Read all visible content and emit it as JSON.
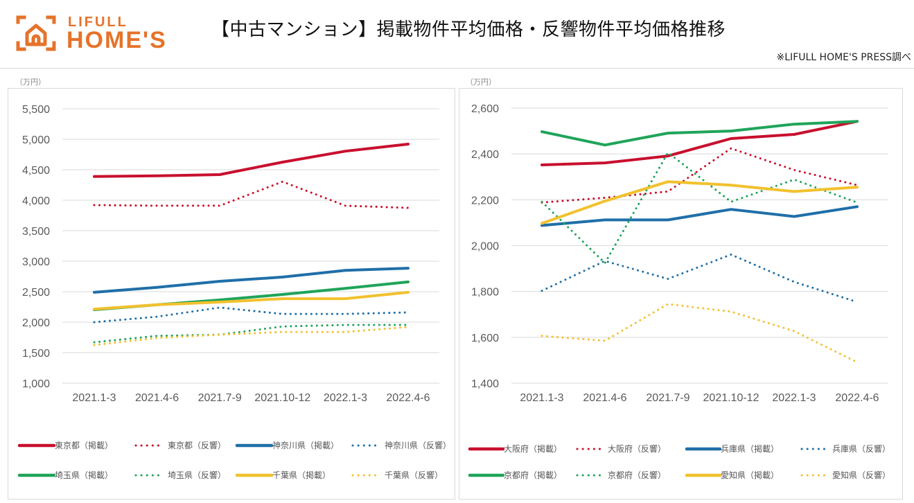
{
  "header": {
    "logo": {
      "line1": "LIFULL",
      "line2": "HOME'S",
      "icon": "house-frame-icon",
      "color": "#E5732A"
    },
    "title": "【中古マンション】掲載物件平均価格・反響物件平均価格推移",
    "source": "※LIFULL HOME'S PRESS調べ"
  },
  "colors": {
    "red": "#C8102E",
    "blue": "#1F6FA8",
    "green": "#1FA45A",
    "yellow": "#F2C12E",
    "grid": "#d9d9d9",
    "axis_text": "#595959"
  },
  "chart_data": [
    {
      "type": "line",
      "title": "",
      "unit_label": "（万円）",
      "xlabel": "",
      "ylabel": "（万円）",
      "categories": [
        "2021.1-3",
        "2021.4-6",
        "2021.7-9",
        "2021.10-12",
        "2022.1-3",
        "2022.4-6"
      ],
      "ylim": [
        1000,
        5500
      ],
      "yticks": [
        1000,
        1500,
        2000,
        2500,
        3000,
        3500,
        4000,
        4500,
        5000,
        5500
      ],
      "ytick_labels": [
        "1,000",
        "1,500",
        "2,000",
        "2,500",
        "3,000",
        "3,500",
        "4,000",
        "4,500",
        "5,000",
        "5,500"
      ],
      "grid": true,
      "legend_position": "bottom",
      "series": [
        {
          "name": "東京都（掲載）",
          "color": "red",
          "style": "solid",
          "values": [
            4390,
            4400,
            4420,
            4625,
            4805,
            4920
          ]
        },
        {
          "name": "東京都（反響）",
          "color": "red",
          "style": "dotted",
          "values": [
            3920,
            3910,
            3910,
            4305,
            3910,
            3875
          ]
        },
        {
          "name": "神奈川県（掲載）",
          "color": "blue",
          "style": "solid",
          "values": [
            2490,
            2570,
            2670,
            2740,
            2850,
            2885
          ]
        },
        {
          "name": "神奈川県（反響）",
          "color": "blue",
          "style": "dotted",
          "values": [
            2000,
            2090,
            2240,
            2135,
            2135,
            2160
          ]
        },
        {
          "name": "埼玉県（掲載）",
          "color": "green",
          "style": "solid",
          "values": [
            2205,
            2285,
            2365,
            2455,
            2555,
            2660
          ]
        },
        {
          "name": "埼玉県（反響）",
          "color": "green",
          "style": "dotted",
          "values": [
            1670,
            1775,
            1795,
            1930,
            1955,
            1955
          ]
        },
        {
          "name": "千葉県（掲載）",
          "color": "yellow",
          "style": "solid",
          "values": [
            2215,
            2285,
            2330,
            2385,
            2385,
            2490
          ]
        },
        {
          "name": "千葉県（反響）",
          "color": "yellow",
          "style": "dotted",
          "values": [
            1625,
            1740,
            1795,
            1840,
            1840,
            1920
          ]
        }
      ]
    },
    {
      "type": "line",
      "title": "",
      "unit_label": "（万円）",
      "xlabel": "",
      "ylabel": "（万円）",
      "categories": [
        "2021.1-3",
        "2021.4-6",
        "2021.7-9",
        "2021.10-12",
        "2022.1-3",
        "2022.4-6"
      ],
      "ylim": [
        1400,
        2600
      ],
      "yticks": [
        1400,
        1600,
        1800,
        2000,
        2200,
        2400,
        2600
      ],
      "ytick_labels": [
        "1,400",
        "1,600",
        "1,800",
        "2,000",
        "2,200",
        "2,400",
        "2,600"
      ],
      "grid": true,
      "legend_position": "bottom",
      "series": [
        {
          "name": "大阪府（掲載）",
          "color": "red",
          "style": "solid",
          "values": [
            2352,
            2361,
            2391,
            2467,
            2485,
            2542
          ]
        },
        {
          "name": "大阪府（反響）",
          "color": "red",
          "style": "dotted",
          "values": [
            2188,
            2209,
            2236,
            2424,
            2330,
            2264
          ]
        },
        {
          "name": "兵庫県（掲載）",
          "color": "blue",
          "style": "solid",
          "values": [
            2088,
            2112,
            2112,
            2158,
            2127,
            2170
          ]
        },
        {
          "name": "兵庫県（反響）",
          "color": "blue",
          "style": "dotted",
          "values": [
            1803,
            1933,
            1855,
            1961,
            1842,
            1754
          ]
        },
        {
          "name": "京都府（掲載）",
          "color": "green",
          "style": "solid",
          "values": [
            2497,
            2439,
            2491,
            2500,
            2530,
            2542
          ]
        },
        {
          "name": "京都府（反響）",
          "color": "green",
          "style": "dotted",
          "values": [
            2191,
            1924,
            2406,
            2191,
            2288,
            2188
          ]
        },
        {
          "name": "愛知県（掲載）",
          "color": "yellow",
          "style": "solid",
          "values": [
            2097,
            2194,
            2279,
            2264,
            2236,
            2255
          ]
        },
        {
          "name": "愛知県（反響）",
          "color": "yellow",
          "style": "dotted",
          "values": [
            1606,
            1585,
            1745,
            1712,
            1627,
            1491
          ]
        }
      ]
    }
  ]
}
